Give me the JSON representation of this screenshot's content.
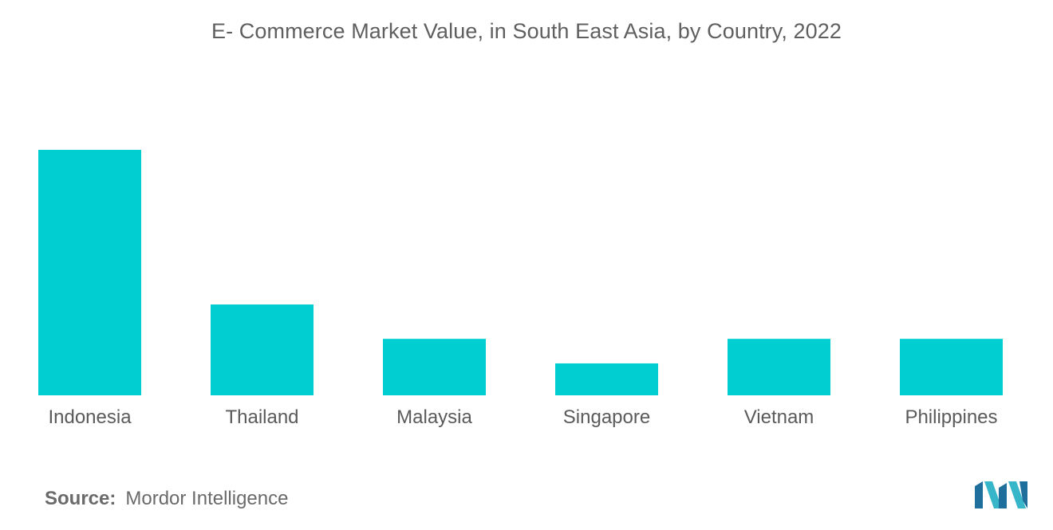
{
  "chart_data": {
    "type": "bar",
    "title": "E- Commerce Market Value, in South East Asia, by Country, 2022",
    "categories": [
      "Indonesia",
      "Thailand",
      "Malaysia",
      "Singapore",
      "Vietnam",
      "Philippines"
    ],
    "values": [
      100,
      37,
      23,
      13,
      23,
      23
    ],
    "xlabel": "",
    "ylabel": "",
    "ylim": [
      0,
      100
    ],
    "grid": false,
    "bar_color": "#00CED1"
  },
  "footer": {
    "source_label": "Source:",
    "source_value": "Mordor Intelligence"
  },
  "logo": {
    "icon": "mordor-intelligence-logo-icon",
    "colors": [
      "#1f6f9c",
      "#38b6c9"
    ]
  }
}
